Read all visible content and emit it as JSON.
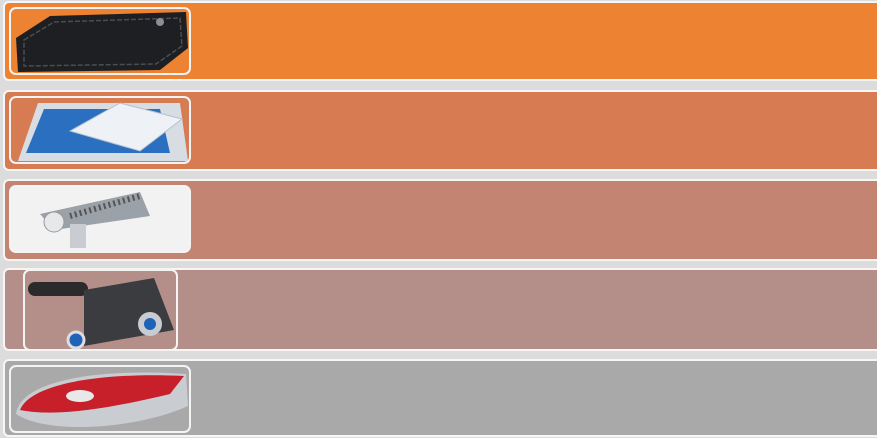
{
  "rows": [
    {
      "color": "#ee8233"
    },
    {
      "color": "#d77c52"
    },
    {
      "color": "#c48472"
    },
    {
      "color": "#b48f89"
    },
    {
      "color": "#a9a9a9"
    }
  ]
}
